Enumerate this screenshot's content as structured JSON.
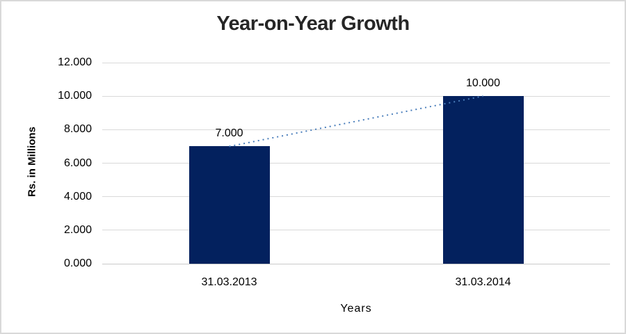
{
  "chart_data": {
    "type": "bar",
    "title": "Year-on-Year Growth",
    "xlabel": "Years",
    "ylabel": "Rs. in Millions",
    "categories": [
      "31.03.2013",
      "31.03.2014"
    ],
    "values": [
      7,
      10
    ],
    "value_labels": [
      "7.000",
      "10.000"
    ],
    "ylim": [
      0,
      12
    ],
    "y_tick_values": [
      0,
      2,
      4,
      6,
      8,
      10,
      12
    ],
    "y_tick_labels": [
      "0.000",
      "2.000",
      "4.000",
      "6.000",
      "8.000",
      "10.000",
      "12.000"
    ],
    "grid": true,
    "legend_position": "none",
    "trendline": {
      "style": "dotted",
      "connects": [
        "31.03.2013",
        "31.03.2014"
      ]
    },
    "colors": {
      "bar": "#03215E",
      "trendline": "#4A7EBB",
      "gridline": "#D9D9D9",
      "axis_line": "#C9C9C9",
      "title_text": "#262626",
      "tick_text": "#000000"
    }
  }
}
